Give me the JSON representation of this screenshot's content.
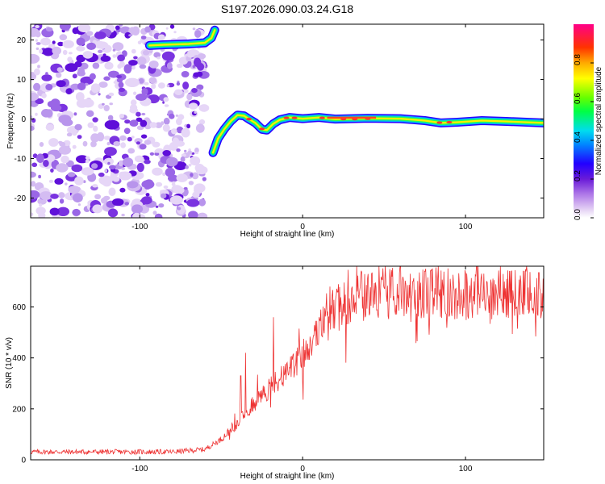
{
  "figure": {
    "title": "S197.2026.090.03.24.G18"
  },
  "chart_data": [
    {
      "type": "heatmap",
      "name": "spectrogram",
      "xlabel": "Height of straight line (km)",
      "ylabel": "Frequency (Hz)",
      "xlim": [
        -167,
        148
      ],
      "ylim": [
        -25,
        24
      ],
      "xticks": [
        -100,
        0,
        100
      ],
      "yticks": [
        20,
        10,
        0,
        -10,
        -20
      ],
      "colorbar": {
        "label": "Normalized spectral amplitude",
        "range": [
          0.0,
          1.0
        ],
        "ticks": [
          "0.0",
          "0.2",
          "0.4",
          "0.6",
          "0.8"
        ],
        "tick_values": [
          0.0,
          0.2,
          0.4,
          0.6,
          0.8
        ]
      },
      "noise_region_x": [
        -167,
        -60
      ],
      "signal_track": [
        {
          "x": -60,
          "y": 19.5
        },
        {
          "x": -70,
          "y": 19
        },
        {
          "x": -85,
          "y": 18.8
        },
        {
          "x": -94,
          "y": 18.6
        },
        {
          "x": -55,
          "y": 22
        },
        {
          "x": -55,
          "y": -8
        },
        {
          "x": -50,
          "y": -3
        },
        {
          "x": -45,
          "y": -1
        },
        {
          "x": -38,
          "y": 1
        },
        {
          "x": -33,
          "y": 0
        },
        {
          "x": -28,
          "y": -1
        },
        {
          "x": -23,
          "y": -3
        },
        {
          "x": -18,
          "y": -1
        },
        {
          "x": -10,
          "y": 0.5
        },
        {
          "x": 0,
          "y": 0
        },
        {
          "x": 15,
          "y": 0.5
        },
        {
          "x": 30,
          "y": 0
        },
        {
          "x": 60,
          "y": 0
        },
        {
          "x": 85,
          "y": -1
        },
        {
          "x": 110,
          "y": -0.5
        },
        {
          "x": 148,
          "y": -1
        }
      ]
    },
    {
      "type": "line",
      "name": "snr",
      "xlabel": "Height of straight line (km)",
      "ylabel": "SNR (10 * v/v)",
      "xlim": [
        -167,
        148
      ],
      "ylim": [
        0,
        760
      ],
      "xticks": [
        -100,
        0,
        100
      ],
      "yticks": [
        0,
        200,
        400,
        600
      ],
      "color": "#ee3333",
      "envelope": {
        "x": [
          -167,
          -80,
          -60,
          -50,
          -40,
          -30,
          -20,
          -10,
          0,
          10,
          20,
          30,
          60,
          100,
          148
        ],
        "y": [
          30,
          30,
          40,
          80,
          140,
          220,
          280,
          330,
          400,
          500,
          580,
          630,
          650,
          640,
          640
        ]
      },
      "peaks": [
        {
          "x": -38,
          "y": 330
        },
        {
          "x": -35,
          "y": 420
        },
        {
          "x": -18,
          "y": 560
        },
        {
          "x": 10,
          "y": 560
        },
        {
          "x": 60,
          "y": 760
        },
        {
          "x": 75,
          "y": 740
        },
        {
          "x": 145,
          "y": 735
        }
      ]
    }
  ]
}
